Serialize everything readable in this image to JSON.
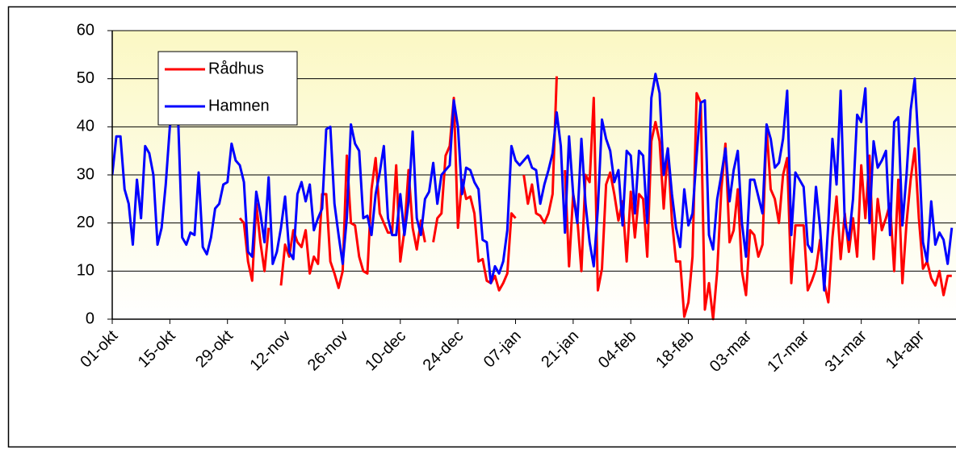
{
  "chart_data": {
    "type": "line",
    "categories": [
      "01-okt",
      null,
      null,
      null,
      null,
      null,
      null,
      null,
      null,
      null,
      null,
      null,
      null,
      null,
      "15-okt",
      null,
      null,
      null,
      null,
      null,
      null,
      null,
      null,
      null,
      null,
      null,
      null,
      null,
      "29-okt",
      null,
      null,
      null,
      null,
      null,
      null,
      null,
      null,
      null,
      null,
      null,
      null,
      null,
      "12-nov",
      null,
      null,
      null,
      null,
      null,
      null,
      null,
      null,
      null,
      null,
      null,
      null,
      null,
      "26-nov",
      null,
      null,
      null,
      null,
      null,
      null,
      null,
      null,
      null,
      null,
      null,
      null,
      null,
      "10-dec",
      null,
      null,
      null,
      null,
      null,
      null,
      null,
      null,
      null,
      null,
      null,
      null,
      null,
      "24-dec",
      null,
      null,
      null,
      null,
      null,
      null,
      null,
      null,
      null,
      null,
      null,
      null,
      null,
      "07-jan",
      null,
      null,
      null,
      null,
      null,
      null,
      null,
      null,
      null,
      null,
      null,
      null,
      null,
      "21-jan",
      null,
      null,
      null,
      null,
      null,
      null,
      null,
      null,
      null,
      null,
      null,
      null,
      null,
      "04-feb",
      null,
      null,
      null,
      null,
      null,
      null,
      null,
      null,
      null,
      null,
      null,
      null,
      null,
      "18-feb",
      null,
      null,
      null,
      null,
      null,
      null,
      null,
      null,
      null,
      null,
      null,
      null,
      null,
      "03-mar",
      null,
      null,
      null,
      null,
      null,
      null,
      null,
      null,
      null,
      null,
      null,
      null,
      null,
      "17-mar",
      null,
      null,
      null,
      null,
      null,
      null,
      null,
      null,
      null,
      null,
      null,
      null,
      null,
      "31-mar",
      null,
      null,
      null,
      null,
      null,
      null,
      null,
      null,
      null,
      null,
      null,
      null,
      null,
      "14-apr",
      null,
      null,
      null,
      null,
      null,
      null,
      null,
      null
    ],
    "series": [
      {
        "name": "Rådhus",
        "color": "#ff0000",
        "values": [
          null,
          null,
          null,
          null,
          null,
          null,
          null,
          null,
          null,
          null,
          null,
          null,
          null,
          null,
          null,
          null,
          null,
          null,
          null,
          null,
          null,
          null,
          null,
          null,
          null,
          null,
          null,
          null,
          null,
          null,
          null,
          21,
          20,
          12,
          8,
          24,
          16,
          10,
          19,
          null,
          null,
          7,
          15.5,
          13,
          18.5,
          16,
          15,
          18.5,
          9.5,
          13,
          11.5,
          26,
          26,
          12,
          9.5,
          6.5,
          10,
          34,
          20,
          19.5,
          13,
          10,
          9.5,
          27,
          33.5,
          22,
          20,
          18,
          18,
          32,
          12,
          18.5,
          31,
          19,
          14.5,
          20.5,
          16,
          null,
          16,
          21,
          22,
          34,
          36,
          46,
          19,
          29,
          25,
          25.5,
          22,
          12,
          12.5,
          8,
          7.5,
          9,
          6,
          7.5,
          9.5,
          22,
          21,
          null,
          30,
          24,
          28,
          22,
          21.5,
          20,
          22,
          26,
          50.5,
          null,
          31,
          11,
          26,
          21,
          10,
          30,
          28.5,
          46,
          6,
          10.5,
          28,
          30.5,
          26,
          20.5,
          24.5,
          12,
          26.5,
          17,
          26,
          25,
          13,
          37,
          41,
          37,
          23,
          35.5,
          20.5,
          12,
          12,
          0.5,
          3.5,
          13,
          47,
          45,
          2,
          7.5,
          0,
          10,
          27,
          36.5,
          16,
          18.5,
          27,
          10,
          5,
          18.5,
          17.5,
          13,
          15.5,
          40,
          27,
          25,
          20,
          30,
          33.5,
          7.5,
          19.5,
          19.5,
          19.5,
          6,
          8,
          10.5,
          16.5,
          7.5,
          3.5,
          17,
          25.5,
          12.5,
          22,
          14,
          21,
          13,
          32,
          21,
          34,
          12.5,
          25,
          18.5,
          21,
          24,
          10,
          29,
          7.5,
          20,
          29,
          35.5,
          21,
          10.5,
          12,
          8.5,
          7,
          10,
          5,
          9,
          9
        ]
      },
      {
        "name": "Hamnen",
        "color": "#0000ff",
        "values": [
          30,
          38,
          38,
          27,
          24,
          15.5,
          29,
          21,
          36,
          34.5,
          30,
          15.5,
          19,
          28,
          40,
          44,
          42,
          17,
          15.5,
          18,
          17.5,
          30.5,
          15,
          13.5,
          17,
          23,
          24,
          28,
          28.5,
          36.5,
          33,
          32,
          28.5,
          14,
          13,
          26.5,
          22,
          16,
          29.5,
          11.5,
          14,
          19,
          25.5,
          14,
          12.5,
          26,
          28.5,
          24.5,
          28,
          18.5,
          21,
          23,
          39.5,
          40,
          24,
          17.5,
          11.5,
          21,
          40.5,
          36.5,
          35,
          21,
          21.5,
          17.5,
          26,
          30.5,
          36,
          21,
          17.5,
          17.5,
          26,
          17.5,
          24.5,
          39,
          21,
          17.5,
          25,
          26.5,
          32.5,
          24,
          30,
          31,
          32,
          45.5,
          40,
          26,
          31.5,
          31,
          28.5,
          27,
          16.5,
          16,
          7.5,
          11,
          9.5,
          12,
          18.5,
          36,
          33,
          32,
          33,
          34,
          31.5,
          31,
          24,
          28,
          31,
          34.5,
          43,
          36,
          18,
          38,
          26,
          20,
          37.5,
          24,
          16,
          11,
          23,
          41.5,
          37.5,
          35,
          28.5,
          31,
          19.5,
          35,
          34,
          22,
          35,
          34,
          20,
          46,
          51,
          47,
          30,
          35.5,
          26,
          19,
          15,
          27,
          19.5,
          22,
          34,
          45,
          45.5,
          17.5,
          14.5,
          25,
          30,
          35.5,
          24.5,
          31,
          35,
          20,
          13,
          29,
          29,
          25.5,
          22,
          40.5,
          37.5,
          31.5,
          32.5,
          37.5,
          47.5,
          17.5,
          30.5,
          29,
          27.5,
          15.5,
          14,
          27.5,
          19,
          6,
          20,
          37.5,
          28,
          47.5,
          20,
          16.5,
          25,
          42.5,
          41,
          48,
          20,
          37,
          31.5,
          33,
          35,
          17.5,
          41,
          42,
          19.5,
          30,
          43.5,
          50,
          35,
          16,
          12,
          24.5,
          15.5,
          18,
          16.5,
          11.5,
          19
        ]
      }
    ],
    "ylim": [
      0,
      60
    ],
    "yticks": [
      0,
      10,
      20,
      30,
      40,
      50,
      60
    ],
    "grid": true,
    "legend": "top-left"
  }
}
